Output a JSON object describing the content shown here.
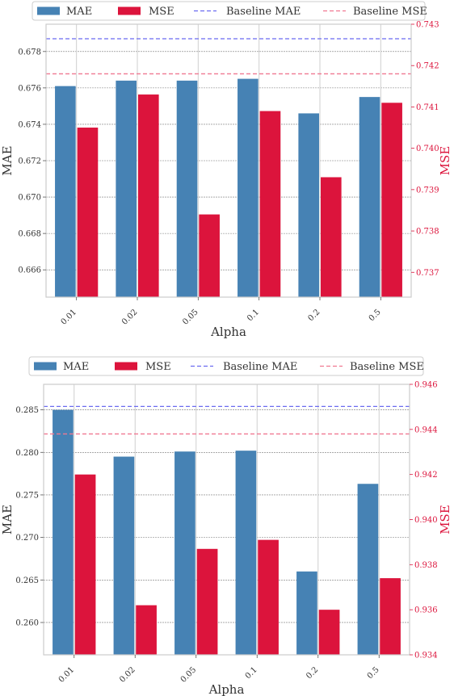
{
  "colors": {
    "mae": "#4682b4",
    "mse": "#dc143c",
    "baseline_mae": "#6b6bf0",
    "baseline_mse": "#f07891"
  },
  "chart_data": [
    {
      "type": "bar",
      "categories": [
        "0.01",
        "0.02",
        "0.05",
        "0.1",
        "0.2",
        "0.5"
      ],
      "series": [
        {
          "name": "MAE",
          "axis": "left",
          "values": [
            0.6761,
            0.6764,
            0.6764,
            0.6765,
            0.6746,
            0.6755
          ]
        },
        {
          "name": "MSE",
          "axis": "right",
          "values": [
            0.7405,
            0.7413,
            0.7384,
            0.7409,
            0.7393,
            0.7411
          ]
        }
      ],
      "baselines": [
        {
          "name": "Baseline MAE",
          "axis": "left",
          "value": 0.6787
        },
        {
          "name": "Baseline MSE",
          "axis": "right",
          "value": 0.7418
        }
      ],
      "xlabel": "Alpha",
      "ylabel": "MAE",
      "ylabel_right": "MSE",
      "ylim": [
        0.6645,
        0.6795
      ],
      "ylim_right": [
        0.7364,
        0.743
      ],
      "yticks": [
        "0.666",
        "0.668",
        "0.670",
        "0.672",
        "0.674",
        "0.676",
        "0.678"
      ],
      "yticks_right": [
        "0.737",
        "0.738",
        "0.739",
        "0.740",
        "0.741",
        "0.742",
        "0.743"
      ],
      "legend": [
        "MAE",
        "MSE",
        "Baseline MAE",
        "Baseline MSE"
      ],
      "legend_position": "top-center",
      "grid": true
    },
    {
      "type": "bar",
      "categories": [
        "0.01",
        "0.02",
        "0.05",
        "0.1",
        "0.2",
        "0.5"
      ],
      "series": [
        {
          "name": "MAE",
          "axis": "left",
          "values": [
            0.285,
            0.2795,
            0.2801,
            0.2802,
            0.266,
            0.2763
          ]
        },
        {
          "name": "MSE",
          "axis": "right",
          "values": [
            0.942,
            0.9362,
            0.9387,
            0.9391,
            0.936,
            0.9374
          ]
        }
      ],
      "baselines": [
        {
          "name": "Baseline MAE",
          "axis": "left",
          "value": 0.2854
        },
        {
          "name": "Baseline MSE",
          "axis": "right",
          "value": 0.9438
        }
      ],
      "xlabel": "Alpha",
      "ylabel": "MAE",
      "ylabel_right": "MSE",
      "ylim": [
        0.2562,
        0.288
      ],
      "ylim_right": [
        0.934,
        0.946
      ],
      "yticks": [
        "0.260",
        "0.265",
        "0.270",
        "0.275",
        "0.280",
        "0.285"
      ],
      "yticks_right": [
        "0.934",
        "0.936",
        "0.938",
        "0.940",
        "0.942",
        "0.944",
        "0.946"
      ],
      "legend": [
        "MAE",
        "MSE",
        "Baseline MAE",
        "Baseline MSE"
      ],
      "legend_position": "top-center",
      "grid": true
    }
  ]
}
